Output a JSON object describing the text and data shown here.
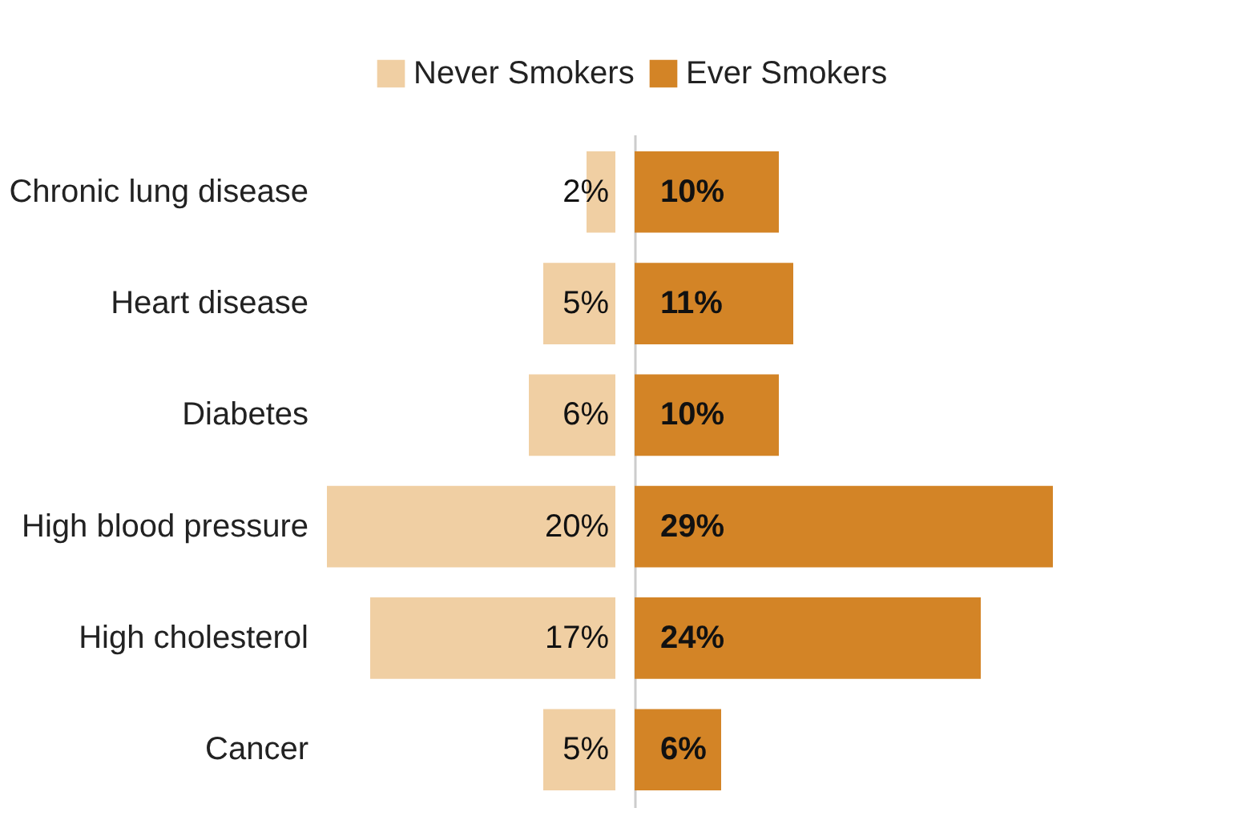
{
  "chart_data": [
    {
      "type": "bar",
      "orientation": "horizontal",
      "categories": [
        "Chronic lung disease",
        "Heart disease",
        "Diabetes",
        "High blood pressure",
        "High cholesterol",
        "Cancer"
      ],
      "xlim": [
        20,
        0
      ],
      "tick_labels": "y",
      "legend": "top",
      "grid": false,
      "series": [
        {
          "name": "Never Smokers",
          "color": "#f0cfa3",
          "values": [
            2,
            5,
            6,
            20,
            17,
            5
          ],
          "value_labels": [
            "2%",
            "5%",
            "6%",
            "20%",
            "17%",
            "5%"
          ]
        }
      ]
    },
    {
      "type": "bar",
      "orientation": "horizontal",
      "categories": [
        null,
        null,
        null,
        null,
        null,
        null
      ],
      "xlim": [
        0,
        29
      ],
      "tick_labels": false,
      "legend": "top",
      "grid": false,
      "series": [
        {
          "name": "Ever Smokers",
          "color": "#d38426",
          "values": [
            10,
            11,
            10,
            29,
            24,
            6
          ],
          "value_labels": [
            "10%",
            "11%",
            "10%",
            "29%",
            "24%",
            "6%"
          ]
        }
      ]
    }
  ]
}
